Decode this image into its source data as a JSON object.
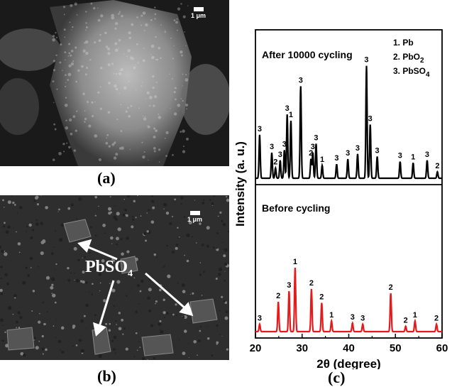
{
  "figure": {
    "panel_a_label": "(a)",
    "panel_b_label": "(b)",
    "panel_c_label": "(c)",
    "scale_a": "1 μm",
    "scale_b": "1 μm",
    "pbso4_label": "PbSO",
    "pbso4_sub": "4"
  },
  "chart_data": {
    "type": "line",
    "xlabel": "2θ (degree)",
    "ylabel": "Intensity (a. u.)",
    "xlim": [
      20,
      60
    ],
    "xticks": [
      20,
      30,
      40,
      50,
      60
    ],
    "legend": [
      "1. Pb",
      "2. PbO2",
      "3. PbSO4"
    ],
    "series": [
      {
        "name": "After 10000 cycling",
        "color": "#000000",
        "peaks": [
          {
            "x": 20.9,
            "h": 0.34,
            "label": "3"
          },
          {
            "x": 23.5,
            "h": 0.2,
            "label": "3"
          },
          {
            "x": 24.3,
            "h": 0.08,
            "label": "2"
          },
          {
            "x": 25.3,
            "h": 0.14,
            "label": "3"
          },
          {
            "x": 26.2,
            "h": 0.22,
            "label": "3"
          },
          {
            "x": 26.8,
            "h": 0.5,
            "label": "3"
          },
          {
            "x": 27.6,
            "h": 0.45,
            "label": "1"
          },
          {
            "x": 29.7,
            "h": 0.72,
            "label": "3"
          },
          {
            "x": 31.9,
            "h": 0.15,
            "label": "2"
          },
          {
            "x": 32.3,
            "h": 0.2,
            "label": "3"
          },
          {
            "x": 33.0,
            "h": 0.27,
            "label": "3"
          },
          {
            "x": 34.3,
            "h": 0.1,
            "label": "1"
          },
          {
            "x": 37.4,
            "h": 0.11,
            "label": "3"
          },
          {
            "x": 39.8,
            "h": 0.15,
            "label": "3"
          },
          {
            "x": 41.9,
            "h": 0.19,
            "label": "3"
          },
          {
            "x": 43.8,
            "h": 0.88,
            "label": "3"
          },
          {
            "x": 44.6,
            "h": 0.42,
            "label": "3"
          },
          {
            "x": 46.1,
            "h": 0.17,
            "label": "3"
          },
          {
            "x": 51.0,
            "h": 0.13,
            "label": "3"
          },
          {
            "x": 53.8,
            "h": 0.12,
            "label": "1"
          },
          {
            "x": 56.8,
            "h": 0.14,
            "label": "3"
          },
          {
            "x": 59.0,
            "h": 0.05,
            "label": "2"
          }
        ]
      },
      {
        "name": "Before cycling",
        "color": "#e41a1c",
        "peaks": [
          {
            "x": 20.9,
            "h": 0.07,
            "label": "3"
          },
          {
            "x": 24.9,
            "h": 0.28,
            "label": "2"
          },
          {
            "x": 27.2,
            "h": 0.38,
            "label": "3"
          },
          {
            "x": 28.5,
            "h": 0.6,
            "label": "1"
          },
          {
            "x": 32.0,
            "h": 0.4,
            "label": "2"
          },
          {
            "x": 34.2,
            "h": 0.27,
            "label": "2"
          },
          {
            "x": 36.3,
            "h": 0.1,
            "label": "1"
          },
          {
            "x": 40.8,
            "h": 0.08,
            "label": "3"
          },
          {
            "x": 43.0,
            "h": 0.07,
            "label": "3"
          },
          {
            "x": 49.0,
            "h": 0.36,
            "label": "2"
          },
          {
            "x": 52.2,
            "h": 0.05,
            "label": "2"
          },
          {
            "x": 54.2,
            "h": 0.1,
            "label": "1"
          },
          {
            "x": 58.8,
            "h": 0.07,
            "label": "2"
          }
        ]
      }
    ]
  }
}
